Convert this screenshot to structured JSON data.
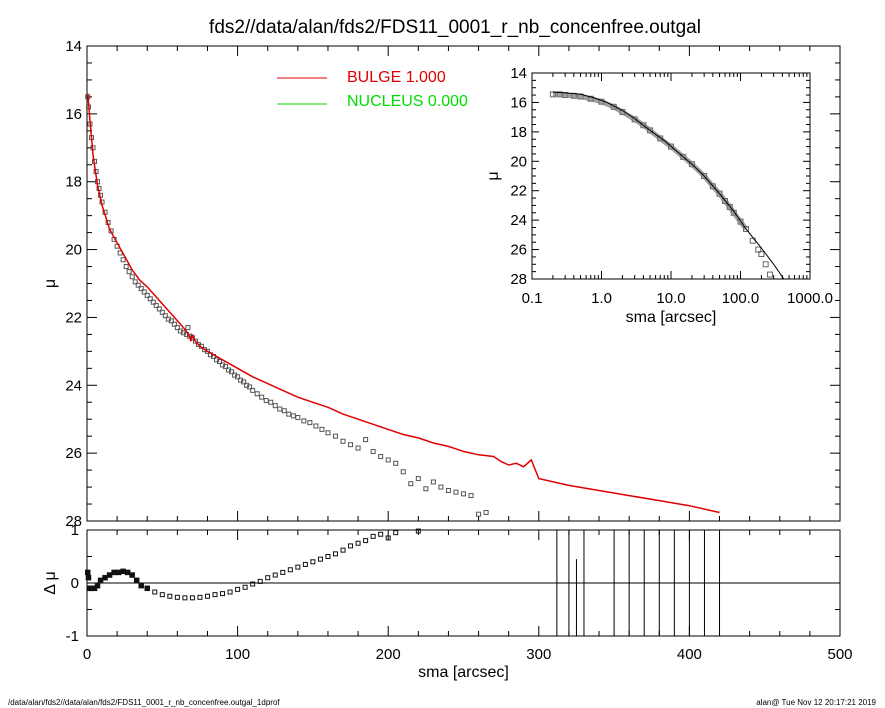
{
  "title": "fds2//data/alan/fds2/FDS11_0001_r_nb_concenfree.outgal",
  "footer_left": "/data/alan/fds2//data/alan/fds2/FDS11_0001_r_nb_concenfree.outgal_1dprof",
  "footer_right": "alan@  Tue Nov 12 20:17:21 2019",
  "colors": {
    "bulge": "#e00000",
    "nucleus": "#00dd00",
    "data": "#555555",
    "axes": "#000000"
  },
  "legend": [
    {
      "label": "BULGE  1.000",
      "color": "#e00000"
    },
    {
      "label": "NUCLEUS  0.000",
      "color": "#00dd00"
    }
  ],
  "chart_data": [
    {
      "type": "scatter",
      "panel": "main",
      "xlabel": "",
      "ylabel": "μ",
      "xlim": [
        0,
        500
      ],
      "ylim": [
        28,
        14
      ],
      "y_inverted": true,
      "yticks": [
        "14",
        "16",
        "18",
        "20",
        "22",
        "24",
        "26",
        "28"
      ],
      "series": [
        {
          "name": "BULGE  1.000",
          "style": "line",
          "color": "#e00000",
          "points": [
            [
              0.5,
              15.4
            ],
            [
              2,
              16.2
            ],
            [
              4,
              17.2
            ],
            [
              7,
              18.1
            ],
            [
              10,
              18.7
            ],
            [
              15,
              19.4
            ],
            [
              20,
              19.8
            ],
            [
              25,
              20.2
            ],
            [
              30,
              20.6
            ],
            [
              35,
              20.9
            ],
            [
              40,
              21.1
            ],
            [
              45,
              21.35
            ],
            [
              50,
              21.6
            ],
            [
              55,
              21.85
            ],
            [
              60,
              22.1
            ],
            [
              65,
              22.35
            ],
            [
              68,
              22.55
            ],
            [
              69,
              22.7
            ],
            [
              70,
              22.5
            ],
            [
              71,
              22.65
            ],
            [
              75,
              22.85
            ],
            [
              80,
              23.0
            ],
            [
              90,
              23.25
            ],
            [
              100,
              23.5
            ],
            [
              110,
              23.75
            ],
            [
              120,
              23.95
            ],
            [
              130,
              24.15
            ],
            [
              140,
              24.35
            ],
            [
              150,
              24.5
            ],
            [
              160,
              24.65
            ],
            [
              170,
              24.85
            ],
            [
              180,
              25.0
            ],
            [
              190,
              25.15
            ],
            [
              200,
              25.3
            ],
            [
              210,
              25.45
            ],
            [
              220,
              25.55
            ],
            [
              230,
              25.7
            ],
            [
              240,
              25.8
            ],
            [
              250,
              25.95
            ],
            [
              260,
              26.05
            ],
            [
              270,
              26.1
            ],
            [
              275,
              26.25
            ],
            [
              280,
              26.35
            ],
            [
              285,
              26.3
            ],
            [
              290,
              26.4
            ],
            [
              295,
              26.2
            ],
            [
              300,
              26.75
            ],
            [
              320,
              26.95
            ],
            [
              340,
              27.1
            ],
            [
              360,
              27.25
            ],
            [
              380,
              27.4
            ],
            [
              400,
              27.55
            ],
            [
              420,
              27.75
            ]
          ]
        },
        {
          "name": "",
          "style": "squares",
          "color": "#555555",
          "points": [
            [
              0.5,
              15.5
            ],
            [
              1,
              15.8
            ],
            [
              2,
              16.3
            ],
            [
              3,
              16.7
            ],
            [
              4,
              17.0
            ],
            [
              5,
              17.4
            ],
            [
              6,
              17.7
            ],
            [
              7,
              18.0
            ],
            [
              8,
              18.2
            ],
            [
              9,
              18.4
            ],
            [
              10,
              18.6
            ],
            [
              12,
              18.9
            ],
            [
              14,
              19.2
            ],
            [
              16,
              19.45
            ],
            [
              18,
              19.7
            ],
            [
              20,
              19.9
            ],
            [
              22,
              20.1
            ],
            [
              24,
              20.3
            ],
            [
              26,
              20.5
            ],
            [
              28,
              20.65
            ],
            [
              30,
              20.8
            ],
            [
              32,
              20.95
            ],
            [
              34,
              21.05
            ],
            [
              36,
              21.15
            ],
            [
              38,
              21.25
            ],
            [
              40,
              21.35
            ],
            [
              42,
              21.45
            ],
            [
              44,
              21.55
            ],
            [
              46,
              21.65
            ],
            [
              48,
              21.75
            ],
            [
              50,
              21.85
            ],
            [
              52,
              21.95
            ],
            [
              54,
              22.05
            ],
            [
              56,
              22.1
            ],
            [
              58,
              22.2
            ],
            [
              60,
              22.3
            ],
            [
              62,
              22.4
            ],
            [
              64,
              22.45
            ],
            [
              66,
              22.5
            ],
            [
              67,
              22.3
            ],
            [
              68,
              22.55
            ],
            [
              70,
              22.6
            ],
            [
              72,
              22.7
            ],
            [
              74,
              22.8
            ],
            [
              76,
              22.85
            ],
            [
              78,
              22.95
            ],
            [
              80,
              23.0
            ],
            [
              82,
              23.1
            ],
            [
              84,
              23.15
            ],
            [
              86,
              23.25
            ],
            [
              88,
              23.3
            ],
            [
              90,
              23.4
            ],
            [
              92,
              23.45
            ],
            [
              94,
              23.55
            ],
            [
              96,
              23.6
            ],
            [
              98,
              23.7
            ],
            [
              100,
              23.75
            ],
            [
              102,
              23.85
            ],
            [
              104,
              23.9
            ],
            [
              106,
              24.0
            ],
            [
              108,
              24.05
            ],
            [
              110,
              24.15
            ],
            [
              113,
              24.25
            ],
            [
              116,
              24.35
            ],
            [
              119,
              24.45
            ],
            [
              122,
              24.5
            ],
            [
              125,
              24.6
            ],
            [
              128,
              24.7
            ],
            [
              131,
              24.75
            ],
            [
              134,
              24.85
            ],
            [
              137,
              24.9
            ],
            [
              140,
              24.95
            ],
            [
              144,
              25.05
            ],
            [
              148,
              25.1
            ],
            [
              152,
              25.2
            ],
            [
              156,
              25.3
            ],
            [
              160,
              25.4
            ],
            [
              165,
              25.5
            ],
            [
              170,
              25.65
            ],
            [
              175,
              25.75
            ],
            [
              180,
              25.85
            ],
            [
              185,
              25.6
            ],
            [
              190,
              25.95
            ],
            [
              195,
              26.1
            ],
            [
              200,
              26.2
            ],
            [
              205,
              26.3
            ],
            [
              210,
              26.55
            ],
            [
              215,
              26.9
            ],
            [
              220,
              26.75
            ],
            [
              225,
              27.05
            ],
            [
              230,
              26.85
            ],
            [
              235,
              27.0
            ],
            [
              240,
              27.1
            ],
            [
              245,
              27.15
            ],
            [
              250,
              27.2
            ],
            [
              255,
              27.25
            ],
            [
              260,
              27.8
            ],
            [
              265,
              27.75
            ]
          ]
        }
      ]
    },
    {
      "type": "scatter",
      "panel": "inset",
      "xlabel": "sma [arcsec]",
      "ylabel": "μ",
      "xscale": "log",
      "xlim": [
        0.1,
        1000
      ],
      "ylim": [
        28,
        14
      ],
      "y_inverted": true,
      "xticks": [
        "0.1",
        "1.0",
        "10.0",
        "100.0",
        "1000.0"
      ],
      "yticks": [
        "14",
        "16",
        "18",
        "20",
        "22",
        "24",
        "26",
        "28"
      ],
      "series": [
        {
          "name": "",
          "style": "line",
          "color": "#000000",
          "points": [
            [
              0.2,
              15.3
            ],
            [
              0.3,
              15.35
            ],
            [
              0.5,
              15.45
            ],
            [
              0.8,
              15.7
            ],
            [
              1.2,
              16.0
            ],
            [
              2,
              16.55
            ],
            [
              3,
              17.1
            ],
            [
              5,
              17.9
            ],
            [
              8,
              18.6
            ],
            [
              12,
              19.3
            ],
            [
              20,
              20.2
            ],
            [
              30,
              21.0
            ],
            [
              50,
              22.2
            ],
            [
              80,
              23.4
            ],
            [
              120,
              24.6
            ],
            [
              200,
              25.9
            ],
            [
              300,
              27.0
            ],
            [
              420,
              28.0
            ]
          ]
        },
        {
          "name": "",
          "style": "squares",
          "color": "#555555",
          "points": [
            [
              0.2,
              15.45
            ],
            [
              0.25,
              15.45
            ],
            [
              0.3,
              15.5
            ],
            [
              0.4,
              15.55
            ],
            [
              0.5,
              15.6
            ],
            [
              0.7,
              15.75
            ],
            [
              1,
              15.95
            ],
            [
              1.5,
              16.3
            ],
            [
              2,
              16.65
            ],
            [
              3,
              17.15
            ],
            [
              4,
              17.55
            ],
            [
              5,
              17.9
            ],
            [
              7,
              18.45
            ],
            [
              10,
              19.0
            ],
            [
              15,
              19.7
            ],
            [
              20,
              20.2
            ],
            [
              30,
              21.0
            ],
            [
              40,
              21.7
            ],
            [
              50,
              22.2
            ],
            [
              60,
              22.7
            ],
            [
              70,
              23.1
            ],
            [
              80,
              23.5
            ],
            [
              100,
              24.1
            ],
            [
              120,
              24.6
            ],
            [
              150,
              25.4
            ],
            [
              180,
              26.0
            ],
            [
              200,
              26.3
            ],
            [
              230,
              27.0
            ],
            [
              265,
              27.7
            ]
          ]
        }
      ]
    },
    {
      "type": "scatter",
      "panel": "residual",
      "xlabel": "sma [arcsec]",
      "ylabel": "Δ μ",
      "xlim": [
        0,
        500
      ],
      "ylim": [
        -1,
        1
      ],
      "xticks": [
        "0",
        "100",
        "200",
        "300",
        "400",
        "500"
      ],
      "yticks": [
        "-1",
        "0",
        "1"
      ],
      "series": [
        {
          "name": "",
          "style": "squares",
          "color": "#111111",
          "points": [
            [
              0.5,
              0.2
            ],
            [
              1,
              0.1
            ],
            [
              2,
              -0.1
            ],
            [
              3,
              -0.1
            ],
            [
              5,
              -0.1
            ],
            [
              7,
              -0.05
            ],
            [
              9,
              0.05
            ],
            [
              12,
              0.1
            ],
            [
              15,
              0.15
            ],
            [
              18,
              0.2
            ],
            [
              21,
              0.2
            ],
            [
              24,
              0.22
            ],
            [
              27,
              0.2
            ],
            [
              30,
              0.15
            ],
            [
              33,
              0.05
            ],
            [
              36,
              -0.05
            ],
            [
              40,
              -0.1
            ],
            [
              45,
              -0.17
            ],
            [
              50,
              -0.22
            ],
            [
              55,
              -0.25
            ],
            [
              60,
              -0.27
            ],
            [
              65,
              -0.28
            ],
            [
              70,
              -0.28
            ],
            [
              75,
              -0.27
            ],
            [
              80,
              -0.25
            ],
            [
              85,
              -0.22
            ],
            [
              90,
              -0.2
            ],
            [
              95,
              -0.17
            ],
            [
              100,
              -0.12
            ],
            [
              105,
              -0.08
            ],
            [
              110,
              -0.02
            ],
            [
              115,
              0.03
            ],
            [
              120,
              0.1
            ],
            [
              125,
              0.15
            ],
            [
              130,
              0.2
            ],
            [
              135,
              0.25
            ],
            [
              140,
              0.3
            ],
            [
              145,
              0.35
            ],
            [
              150,
              0.4
            ],
            [
              155,
              0.45
            ],
            [
              160,
              0.5
            ],
            [
              165,
              0.55
            ],
            [
              170,
              0.62
            ],
            [
              175,
              0.7
            ],
            [
              180,
              0.75
            ],
            [
              185,
              0.8
            ],
            [
              190,
              0.88
            ],
            [
              195,
              0.92
            ],
            [
              200,
              0.85
            ],
            [
              205,
              0.95
            ],
            [
              220,
              0.98
            ]
          ]
        },
        {
          "name": "",
          "style": "vlines",
          "color": "#000000",
          "x": [
            312,
            320,
            325,
            330,
            350,
            360,
            370,
            380,
            390,
            400,
            410,
            420
          ]
        }
      ]
    }
  ]
}
